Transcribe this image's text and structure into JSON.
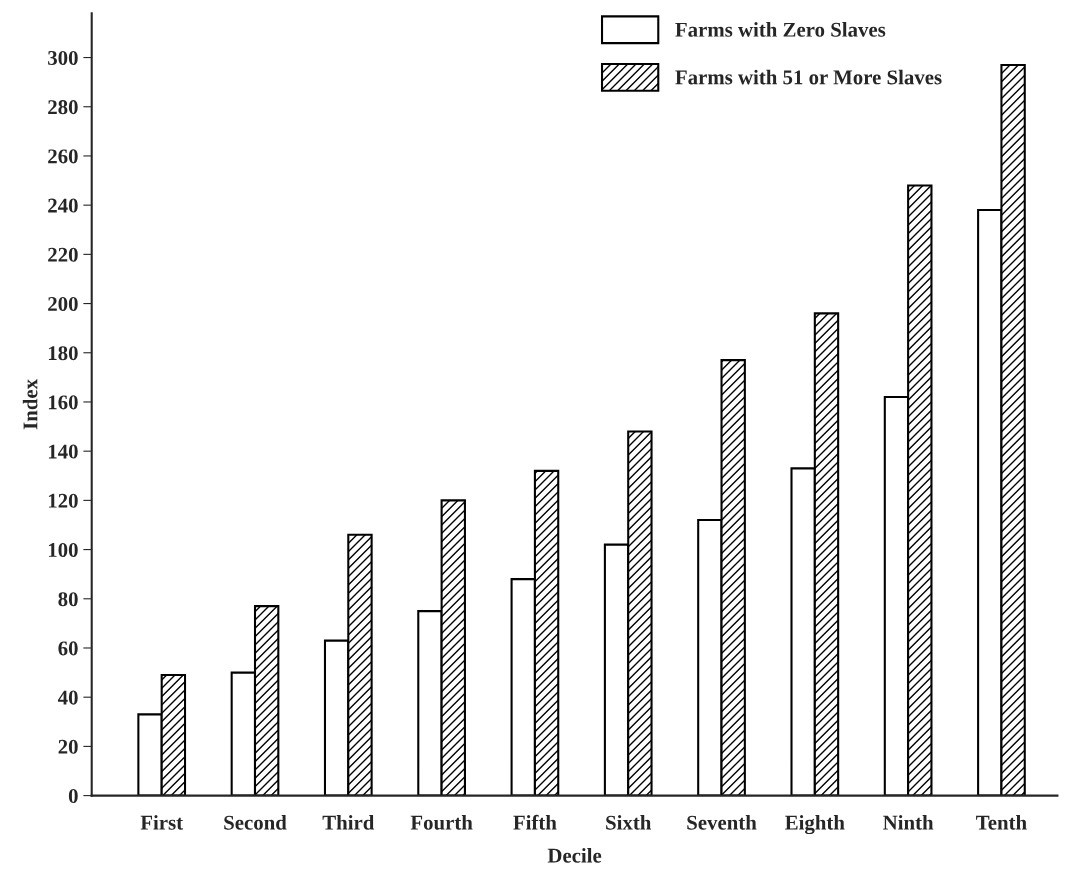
{
  "chart_data": {
    "type": "bar",
    "xlabel": "Decile",
    "ylabel": "Index",
    "categories": [
      "First",
      "Second",
      "Third",
      "Fourth",
      "Fifth",
      "Sixth",
      "Seventh",
      "Eighth",
      "Ninth",
      "Tenth"
    ],
    "series": [
      {
        "name": "Farms with Zero Slaves",
        "color": "#ffffff",
        "values": [
          33,
          50,
          63,
          75,
          88,
          102,
          112,
          133,
          162,
          238
        ]
      },
      {
        "name": "Farms with 51 or More Slaves",
        "color": "#000000",
        "values": [
          49,
          77,
          106,
          120,
          132,
          148,
          177,
          196,
          248,
          297
        ]
      }
    ],
    "ylim": [
      0,
      318
    ],
    "yticks": [
      0,
      20,
      40,
      60,
      80,
      100,
      120,
      140,
      160,
      180,
      200,
      220,
      240,
      260,
      280,
      300
    ],
    "grid": false,
    "legend": "top right"
  }
}
